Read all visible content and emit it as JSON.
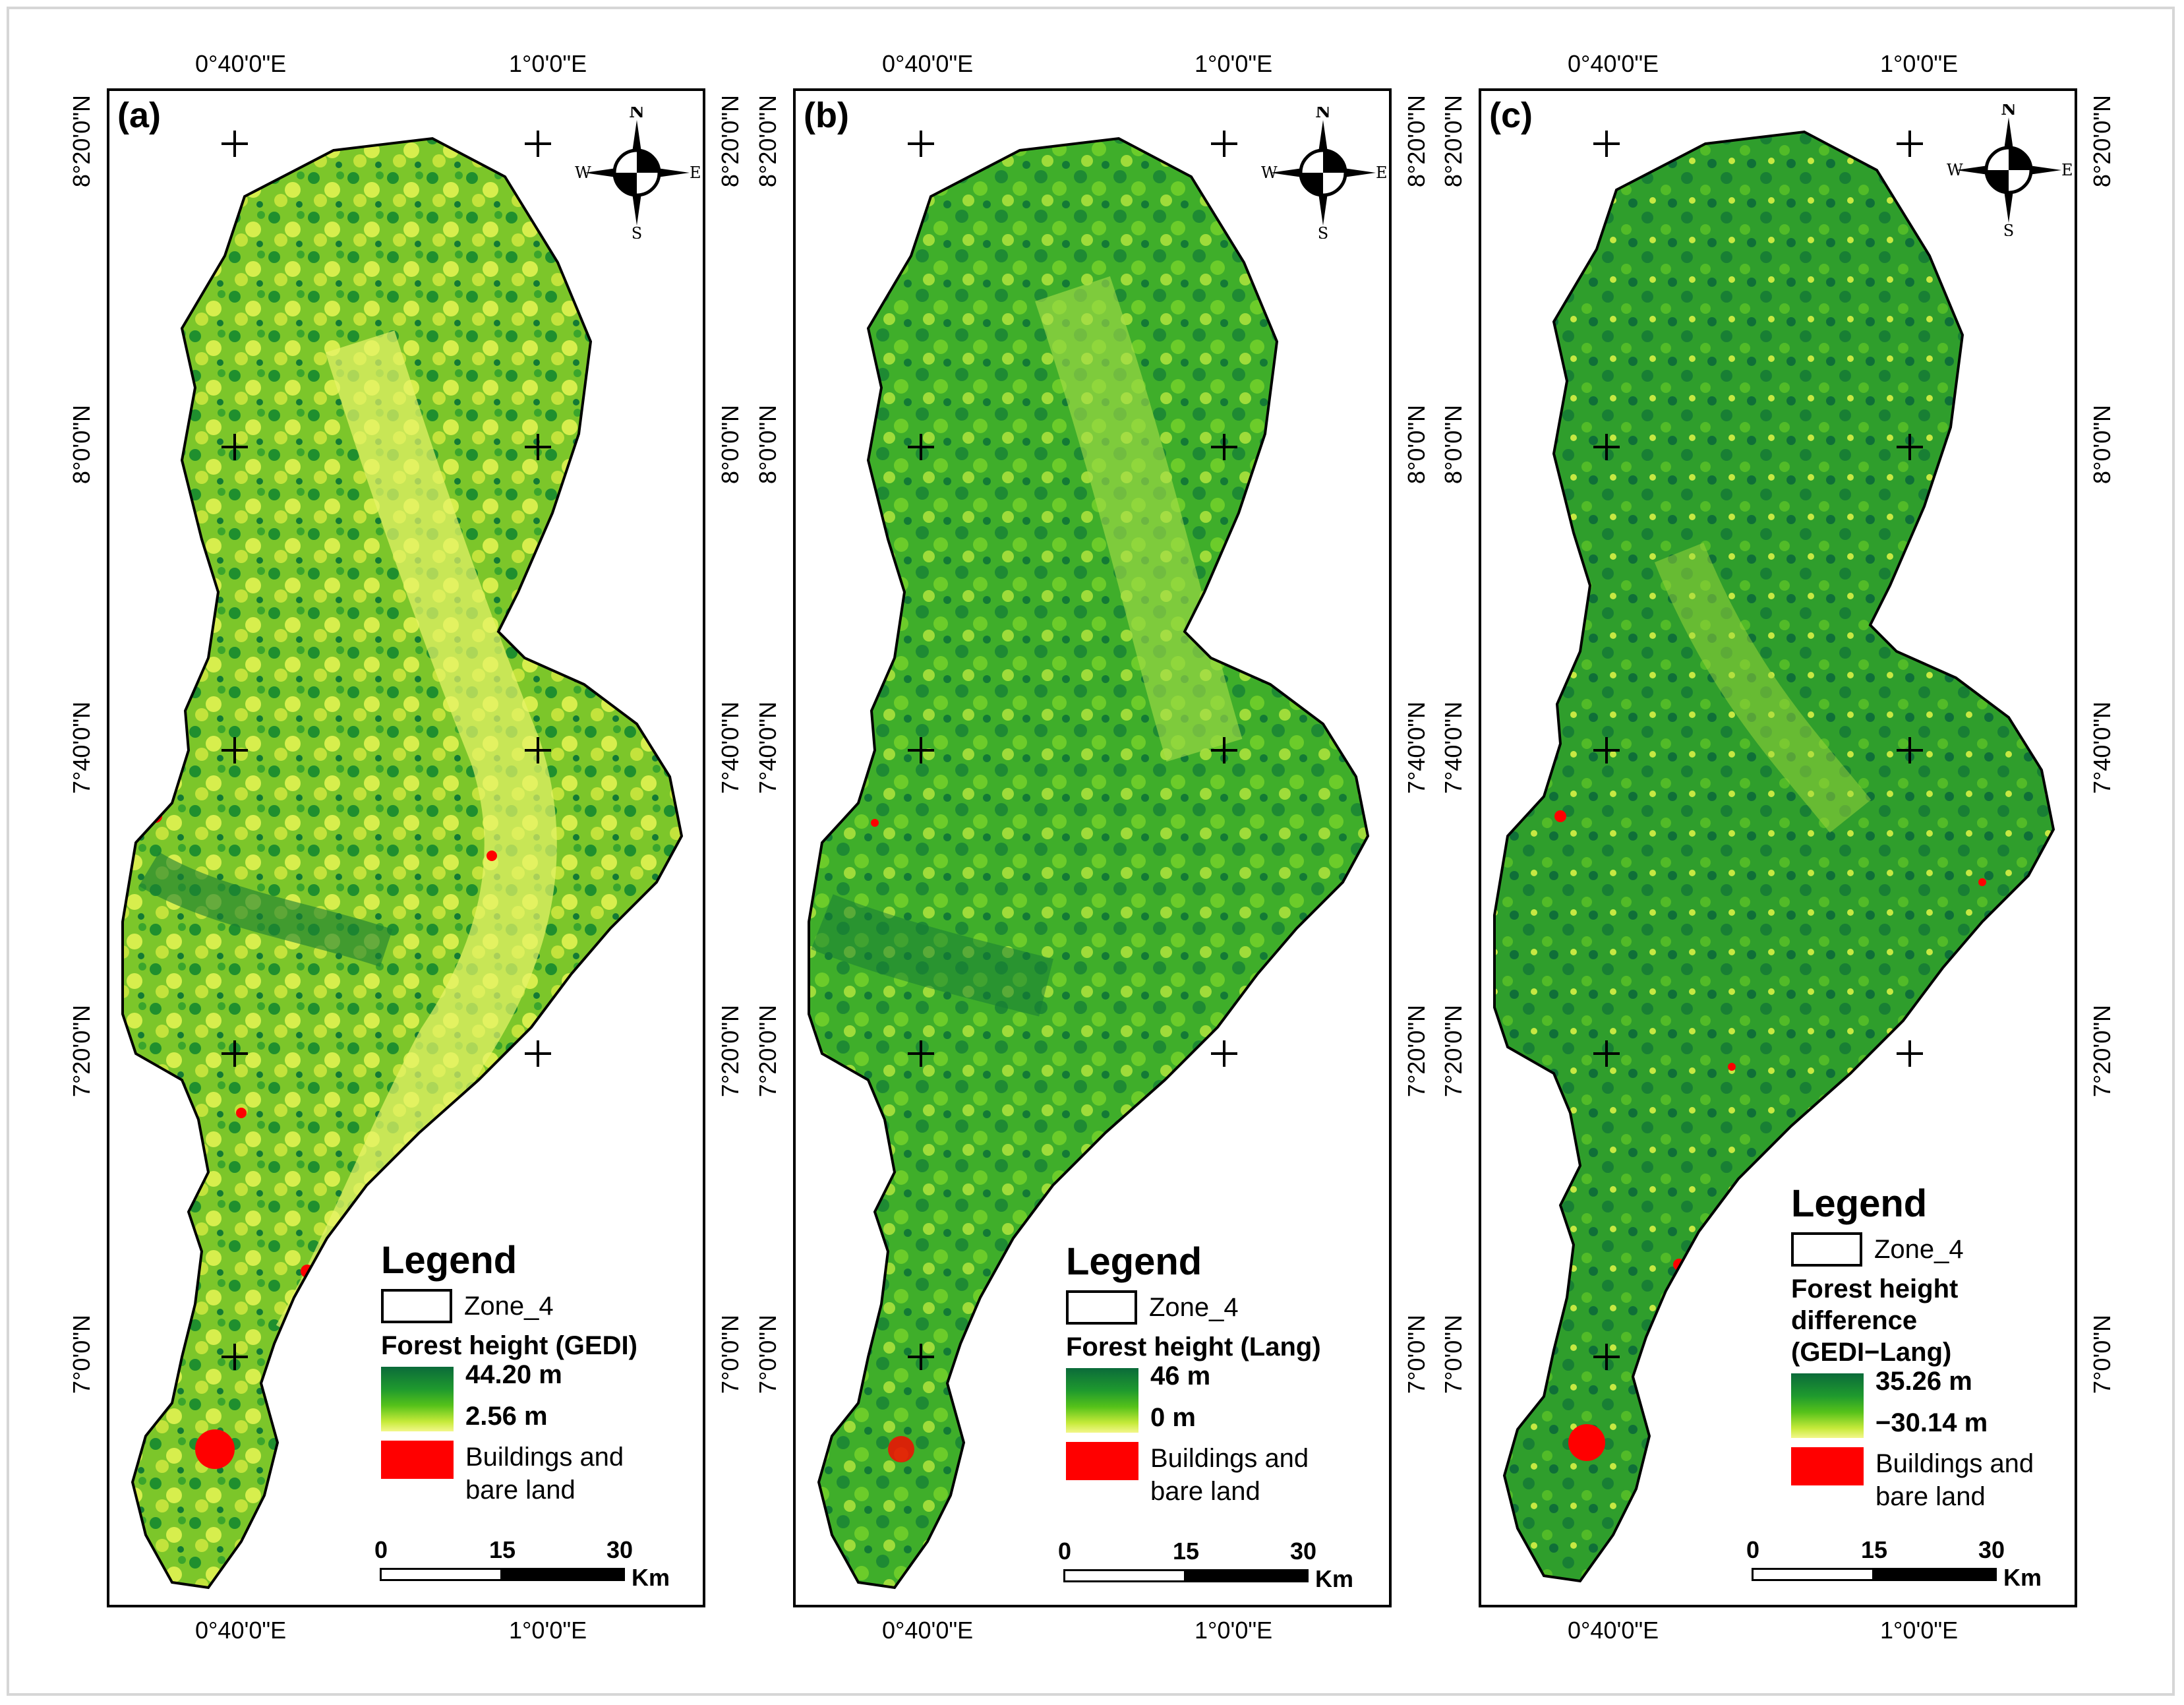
{
  "coordinates": {
    "lon_labels": [
      "0°40'0\"E",
      "1°0'0\"E"
    ],
    "lat_labels": [
      "8°20'0\"N",
      "8°0'0\"N",
      "7°40'0\"N",
      "7°20'0\"N",
      "7°0'0\"N"
    ]
  },
  "compass": {
    "north": "N",
    "south": "S",
    "east": "E",
    "west": "W"
  },
  "colors": {
    "ramp_high": "#0b6b3a",
    "ramp_mid": "#56c21a",
    "ramp_low": "#f3f78a",
    "buildings": "#ff0000"
  },
  "panels": [
    {
      "label": "(a)",
      "legend": {
        "title": "Legend",
        "zone": "Zone_4",
        "layer_title": "Forest height (GEDI)",
        "max_label": "44.20 m",
        "min_label": "2.56 m",
        "buildings": "Buildings and bare land"
      }
    },
    {
      "label": "(b)",
      "legend": {
        "title": "Legend",
        "zone": "Zone_4",
        "layer_title": "Forest height (Lang)",
        "max_label": "46 m",
        "min_label": "0 m",
        "buildings": "Buildings and bare land"
      }
    },
    {
      "label": "(c)",
      "legend": {
        "title": "Legend",
        "zone": "Zone_4",
        "layer_title": "Forest height difference (GEDI−Lang)",
        "max_label": "35.26 m",
        "min_label": "−30.14 m",
        "buildings": "Buildings and bare land"
      }
    }
  ],
  "scale_bar": {
    "ticks": [
      "0",
      "15",
      "30"
    ],
    "unit": "Km"
  }
}
